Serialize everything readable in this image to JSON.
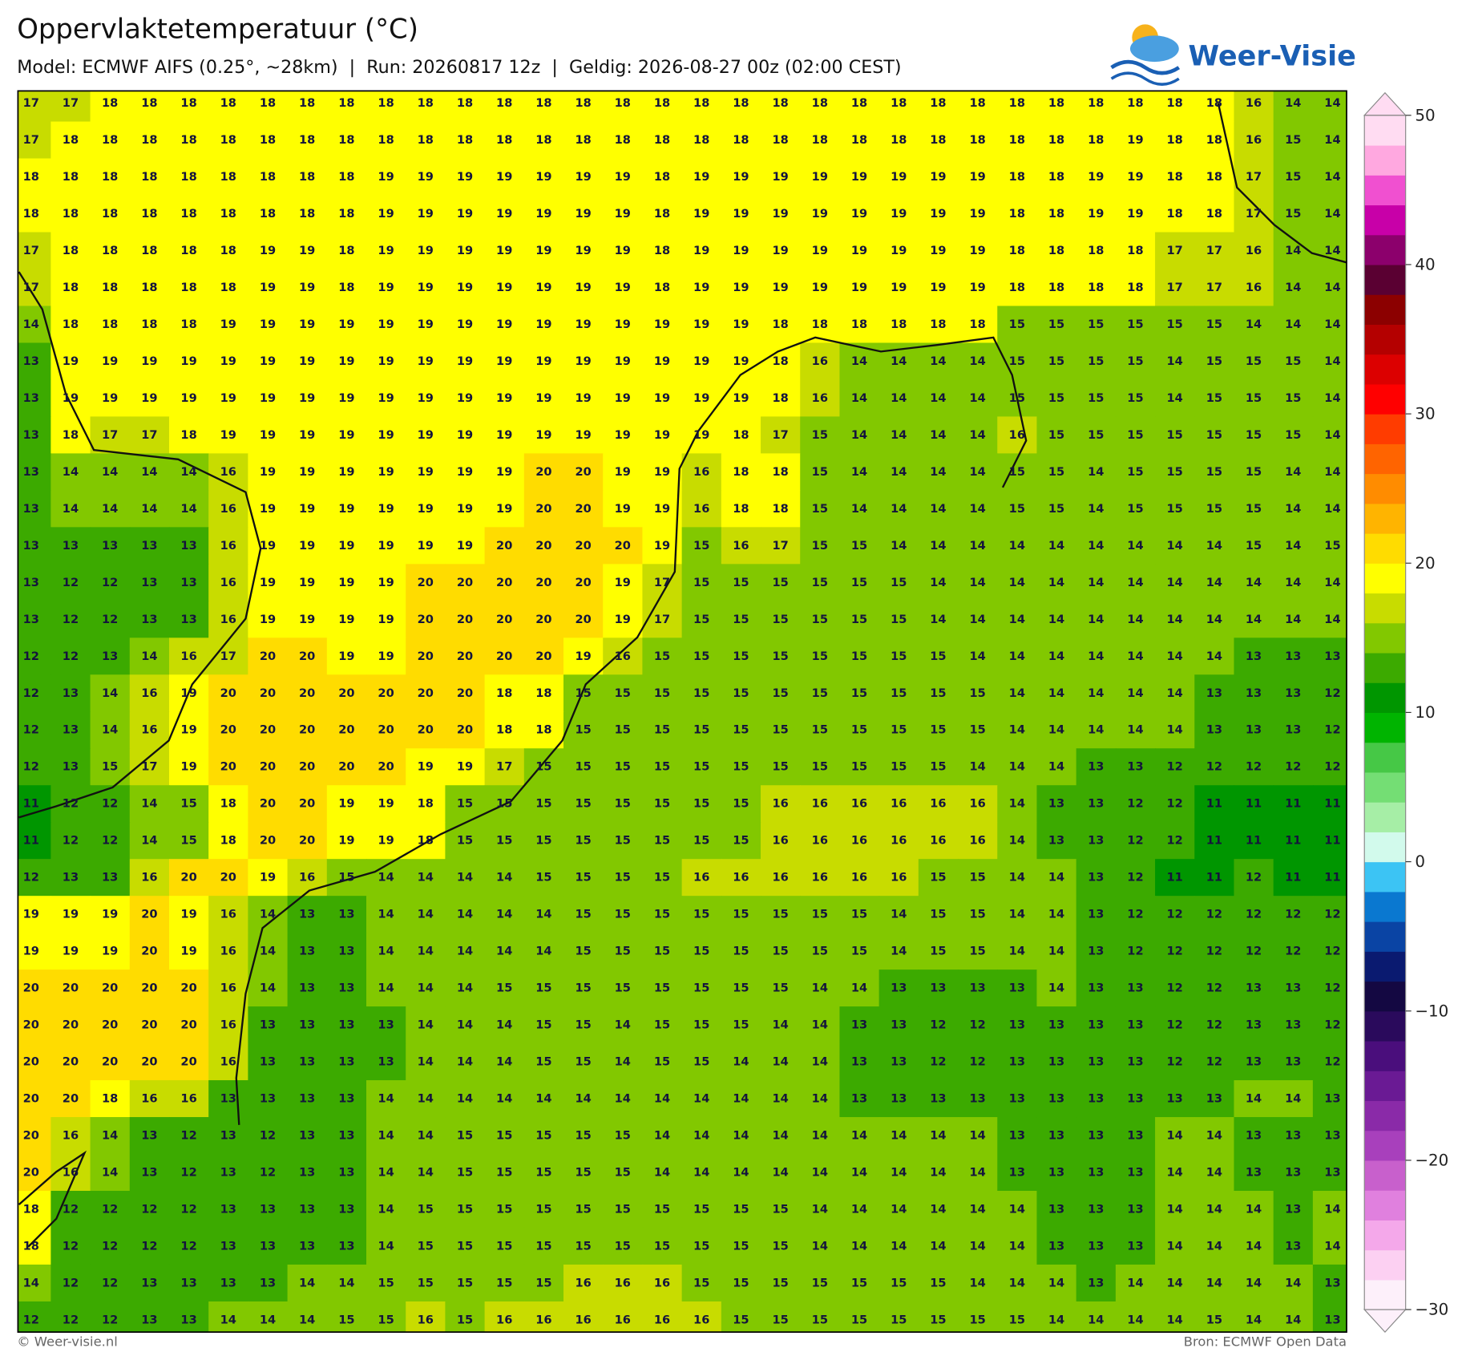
{
  "header": {
    "title": "Oppervlaktetemperatuur (°C)",
    "subtitle": "Model: ECMWF AIFS (0.25°, ~28km)  |  Run: 20260817 12z  |  Geldig: 2026-08-27 00z (02:00 CEST)"
  },
  "logo": "Weer-Visie",
  "map": {
    "grid": [
      [
        17,
        17,
        18,
        18,
        18,
        18,
        18,
        18,
        18,
        18,
        18,
        18,
        18,
        18,
        18,
        18,
        18,
        18,
        18,
        18,
        18,
        18,
        18,
        18,
        18,
        18,
        18,
        18,
        18,
        18,
        18,
        16,
        14,
        14
      ],
      [
        17,
        18,
        18,
        18,
        18,
        18,
        18,
        18,
        18,
        18,
        18,
        18,
        18,
        18,
        18,
        18,
        18,
        18,
        18,
        18,
        18,
        18,
        18,
        18,
        18,
        18,
        18,
        18,
        19,
        18,
        18,
        16,
        15,
        14
      ],
      [
        18,
        18,
        18,
        18,
        18,
        18,
        18,
        18,
        18,
        19,
        19,
        19,
        19,
        19,
        19,
        19,
        18,
        19,
        19,
        19,
        19,
        19,
        19,
        19,
        19,
        18,
        18,
        19,
        19,
        18,
        18,
        17,
        15,
        14
      ],
      [
        18,
        18,
        18,
        18,
        18,
        18,
        18,
        18,
        18,
        19,
        19,
        19,
        19,
        19,
        19,
        19,
        18,
        19,
        19,
        19,
        19,
        19,
        19,
        19,
        19,
        18,
        18,
        19,
        19,
        18,
        18,
        17,
        15,
        14
      ],
      [
        17,
        18,
        18,
        18,
        18,
        18,
        19,
        19,
        18,
        19,
        19,
        19,
        19,
        19,
        19,
        19,
        18,
        19,
        19,
        19,
        19,
        19,
        19,
        19,
        19,
        18,
        18,
        18,
        18,
        17,
        17,
        16,
        14,
        14
      ],
      [
        17,
        18,
        18,
        18,
        18,
        18,
        19,
        19,
        18,
        19,
        19,
        19,
        19,
        19,
        19,
        19,
        18,
        19,
        19,
        19,
        19,
        19,
        19,
        19,
        19,
        18,
        18,
        18,
        18,
        17,
        17,
        16,
        14,
        14
      ],
      [
        14,
        18,
        18,
        18,
        18,
        19,
        19,
        19,
        19,
        19,
        19,
        19,
        19,
        19,
        19,
        19,
        19,
        19,
        19,
        18,
        18,
        18,
        18,
        18,
        18,
        15,
        15,
        15,
        15,
        15,
        15,
        14,
        14,
        14
      ],
      [
        13,
        19,
        19,
        19,
        19,
        19,
        19,
        19,
        19,
        19,
        19,
        19,
        19,
        19,
        19,
        19,
        19,
        19,
        19,
        18,
        16,
        14,
        14,
        14,
        14,
        15,
        15,
        15,
        15,
        14,
        15,
        15,
        15,
        14
      ],
      [
        13,
        19,
        19,
        19,
        19,
        19,
        19,
        19,
        19,
        19,
        19,
        19,
        19,
        19,
        19,
        19,
        19,
        19,
        19,
        18,
        16,
        14,
        14,
        14,
        14,
        15,
        15,
        15,
        15,
        14,
        15,
        15,
        15,
        14
      ],
      [
        13,
        18,
        17,
        17,
        18,
        19,
        19,
        19,
        19,
        19,
        19,
        19,
        19,
        19,
        19,
        19,
        19,
        19,
        18,
        17,
        15,
        14,
        14,
        14,
        14,
        16,
        15,
        15,
        15,
        15,
        15,
        15,
        15,
        14
      ],
      [
        13,
        14,
        14,
        14,
        14,
        16,
        19,
        19,
        19,
        19,
        19,
        19,
        19,
        20,
        20,
        19,
        19,
        16,
        18,
        18,
        15,
        14,
        14,
        14,
        14,
        15,
        15,
        14,
        15,
        15,
        15,
        15,
        14,
        14
      ],
      [
        13,
        14,
        14,
        14,
        14,
        16,
        19,
        19,
        19,
        19,
        19,
        19,
        19,
        20,
        20,
        19,
        19,
        16,
        18,
        18,
        15,
        14,
        14,
        14,
        14,
        15,
        15,
        14,
        15,
        15,
        15,
        15,
        14,
        14
      ],
      [
        13,
        13,
        13,
        13,
        13,
        16,
        19,
        19,
        19,
        19,
        19,
        19,
        20,
        20,
        20,
        20,
        19,
        15,
        16,
        17,
        15,
        15,
        14,
        14,
        14,
        14,
        14,
        14,
        14,
        14,
        14,
        15,
        14,
        15
      ],
      [
        13,
        12,
        12,
        13,
        13,
        16,
        19,
        19,
        19,
        19,
        20,
        20,
        20,
        20,
        20,
        19,
        17,
        15,
        15,
        15,
        15,
        15,
        15,
        14,
        14,
        14,
        14,
        14,
        14,
        14,
        14,
        14,
        14,
        14
      ],
      [
        13,
        12,
        12,
        13,
        13,
        16,
        19,
        19,
        19,
        19,
        20,
        20,
        20,
        20,
        20,
        19,
        17,
        15,
        15,
        15,
        15,
        15,
        15,
        14,
        14,
        14,
        14,
        14,
        14,
        14,
        14,
        14,
        14,
        14
      ],
      [
        12,
        12,
        13,
        14,
        16,
        17,
        20,
        20,
        19,
        19,
        20,
        20,
        20,
        20,
        19,
        16,
        15,
        15,
        15,
        15,
        15,
        15,
        15,
        15,
        14,
        14,
        14,
        14,
        14,
        14,
        14,
        13,
        13,
        13
      ],
      [
        12,
        13,
        14,
        16,
        19,
        20,
        20,
        20,
        20,
        20,
        20,
        20,
        18,
        18,
        15,
        15,
        15,
        15,
        15,
        15,
        15,
        15,
        15,
        15,
        15,
        14,
        14,
        14,
        14,
        14,
        13,
        13,
        13,
        12
      ],
      [
        12,
        13,
        14,
        16,
        19,
        20,
        20,
        20,
        20,
        20,
        20,
        20,
        18,
        18,
        15,
        15,
        15,
        15,
        15,
        15,
        15,
        15,
        15,
        15,
        15,
        14,
        14,
        14,
        14,
        14,
        13,
        13,
        13,
        12
      ],
      [
        12,
        13,
        15,
        17,
        19,
        20,
        20,
        20,
        20,
        20,
        19,
        19,
        17,
        15,
        15,
        15,
        15,
        15,
        15,
        15,
        15,
        15,
        15,
        15,
        14,
        14,
        14,
        13,
        13,
        12,
        12,
        12,
        12,
        12
      ],
      [
        11,
        12,
        12,
        14,
        15,
        18,
        20,
        20,
        19,
        19,
        18,
        15,
        15,
        15,
        15,
        15,
        15,
        15,
        15,
        16,
        16,
        16,
        16,
        16,
        16,
        14,
        13,
        13,
        12,
        12,
        11,
        11,
        11,
        11
      ],
      [
        11,
        12,
        12,
        14,
        15,
        18,
        20,
        20,
        19,
        19,
        18,
        15,
        15,
        15,
        15,
        15,
        15,
        15,
        15,
        16,
        16,
        16,
        16,
        16,
        16,
        14,
        13,
        13,
        12,
        12,
        11,
        11,
        11,
        11
      ],
      [
        12,
        13,
        13,
        16,
        20,
        20,
        19,
        16,
        15,
        14,
        14,
        14,
        14,
        15,
        15,
        15,
        15,
        16,
        16,
        16,
        16,
        16,
        16,
        15,
        15,
        14,
        14,
        13,
        12,
        11,
        11,
        12,
        11,
        11
      ],
      [
        19,
        19,
        19,
        20,
        19,
        16,
        14,
        13,
        13,
        14,
        14,
        14,
        14,
        14,
        15,
        15,
        15,
        15,
        15,
        15,
        15,
        15,
        14,
        15,
        15,
        14,
        14,
        13,
        12,
        12,
        12,
        12,
        12,
        12
      ],
      [
        19,
        19,
        19,
        20,
        19,
        16,
        14,
        13,
        13,
        14,
        14,
        14,
        14,
        14,
        15,
        15,
        15,
        15,
        15,
        15,
        15,
        15,
        14,
        15,
        15,
        14,
        14,
        13,
        12,
        12,
        12,
        12,
        12,
        12
      ],
      [
        20,
        20,
        20,
        20,
        20,
        16,
        14,
        13,
        13,
        14,
        14,
        14,
        15,
        15,
        15,
        15,
        15,
        15,
        15,
        15,
        14,
        14,
        13,
        13,
        13,
        13,
        14,
        13,
        13,
        12,
        12,
        13,
        13,
        12
      ],
      [
        20,
        20,
        20,
        20,
        20,
        16,
        13,
        13,
        13,
        13,
        14,
        14,
        14,
        15,
        15,
        14,
        15,
        15,
        15,
        14,
        14,
        13,
        13,
        12,
        12,
        13,
        13,
        13,
        13,
        12,
        12,
        13,
        13,
        12
      ],
      [
        20,
        20,
        20,
        20,
        20,
        16,
        13,
        13,
        13,
        13,
        14,
        14,
        14,
        15,
        15,
        14,
        15,
        15,
        14,
        14,
        14,
        13,
        13,
        12,
        12,
        13,
        13,
        13,
        13,
        12,
        12,
        13,
        13,
        12
      ],
      [
        20,
        20,
        18,
        16,
        16,
        13,
        13,
        13,
        13,
        14,
        14,
        14,
        14,
        14,
        14,
        14,
        14,
        14,
        14,
        14,
        14,
        13,
        13,
        13,
        13,
        13,
        13,
        13,
        13,
        13,
        13,
        14,
        14,
        13
      ],
      [
        20,
        16,
        14,
        13,
        12,
        13,
        12,
        13,
        13,
        14,
        14,
        15,
        15,
        15,
        15,
        15,
        14,
        14,
        14,
        14,
        14,
        14,
        14,
        14,
        14,
        13,
        13,
        13,
        13,
        14,
        14,
        13,
        13,
        13
      ],
      [
        20,
        16,
        14,
        13,
        12,
        13,
        12,
        13,
        13,
        14,
        14,
        15,
        15,
        15,
        15,
        15,
        14,
        14,
        14,
        14,
        14,
        14,
        14,
        14,
        14,
        13,
        13,
        13,
        13,
        14,
        14,
        13,
        13,
        13
      ],
      [
        18,
        12,
        12,
        12,
        12,
        13,
        13,
        13,
        13,
        14,
        15,
        15,
        15,
        15,
        15,
        15,
        15,
        15,
        15,
        15,
        14,
        14,
        14,
        14,
        14,
        14,
        13,
        13,
        13,
        14,
        14,
        14,
        13,
        14
      ],
      [
        18,
        12,
        12,
        12,
        12,
        13,
        13,
        13,
        13,
        14,
        15,
        15,
        15,
        15,
        15,
        15,
        15,
        15,
        15,
        15,
        14,
        14,
        14,
        14,
        14,
        14,
        13,
        13,
        13,
        14,
        14,
        14,
        13,
        14
      ],
      [
        14,
        12,
        12,
        13,
        13,
        13,
        13,
        14,
        14,
        15,
        15,
        15,
        15,
        15,
        16,
        16,
        16,
        15,
        15,
        15,
        15,
        15,
        15,
        15,
        14,
        14,
        14,
        13,
        14,
        14,
        14,
        14,
        14,
        13
      ],
      [
        12,
        12,
        12,
        13,
        13,
        14,
        14,
        14,
        15,
        15,
        16,
        15,
        16,
        16,
        16,
        16,
        16,
        16,
        15,
        15,
        15,
        15,
        15,
        15,
        15,
        15,
        14,
        14,
        14,
        14,
        15,
        14,
        14,
        13
      ]
    ]
  },
  "colorbar": {
    "lim": [
      -30,
      50
    ],
    "ticks": [
      50,
      40,
      30,
      20,
      10,
      0,
      {
        "value": -10,
        "label": "−10"
      },
      {
        "value": -20,
        "label": "−20"
      },
      {
        "value": -30,
        "label": "−30"
      }
    ],
    "colors": [
      "#fdf0fa",
      "#fcd0f2",
      "#f4a8ea",
      "#e080de",
      "#c860cc",
      "#a840bc",
      "#8a2aa8",
      "#6a1a94",
      "#4a0e7c",
      "#2a0a5c",
      "#140842",
      "#0a1a70",
      "#0a44a4",
      "#0a78d0",
      "#3cc4f4",
      "#d2faec",
      "#a6eea6",
      "#74de74",
      "#46c846",
      "#00b400",
      "#009600",
      "#3caa00",
      "#82c800",
      "#c8dc00",
      "#ffff00",
      "#ffdc00",
      "#ffb400",
      "#ff8c00",
      "#ff6400",
      "#ff3c00",
      "#ff0000",
      "#dc0000",
      "#b40000",
      "#8c0000",
      "#5a0032",
      "#8c006c",
      "#c800a8",
      "#f050d0",
      "#ffa8e0",
      "#ffdcf2"
    ]
  },
  "footer": {
    "left": "© Weer-visie.nl",
    "right": "Bron: ECMWF Open Data"
  }
}
